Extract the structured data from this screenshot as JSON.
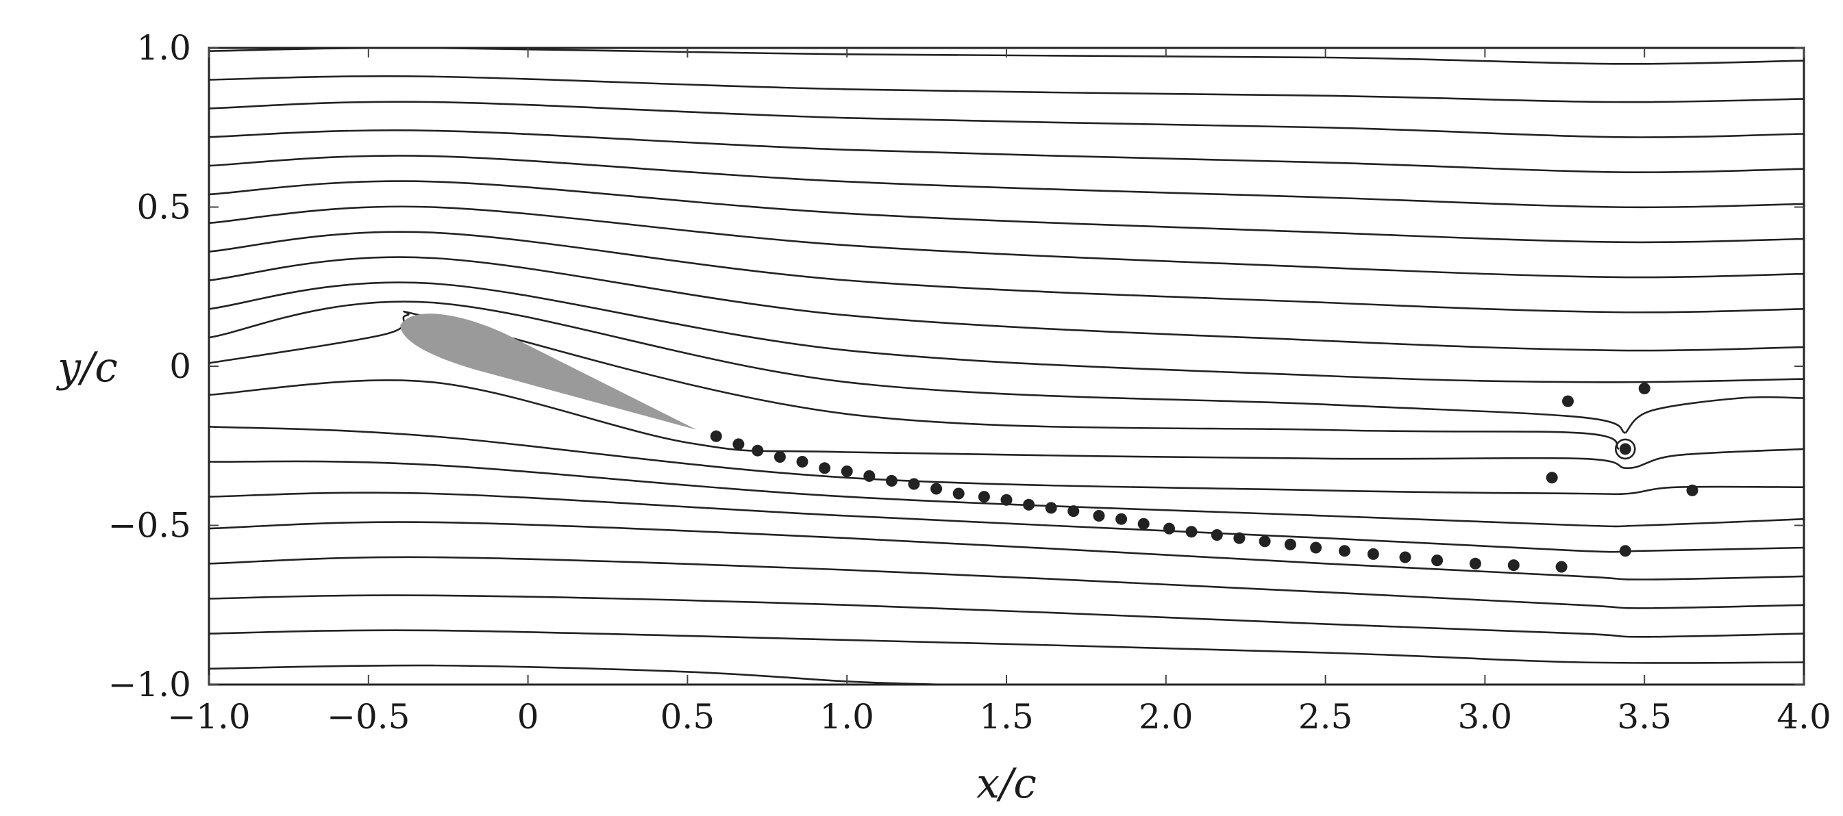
{
  "chart_data": {
    "type": "scatter",
    "xlabel": "x/c",
    "ylabel": "y/c",
    "xlim": [
      -1.0,
      4.0
    ],
    "ylim": [
      -1.0,
      1.0
    ],
    "grid": false,
    "x_ticks": [
      -1.0,
      -0.5,
      0,
      0.5,
      1.0,
      1.5,
      2.0,
      2.5,
      3.0,
      3.5,
      4.0
    ],
    "x_tick_labels": [
      "−1.0",
      "−0.5",
      "0",
      "0.5",
      "1.0",
      "1.5",
      "2.0",
      "2.5",
      "3.0",
      "3.5",
      "4.0"
    ],
    "y_ticks": [
      1.0,
      0.5,
      0,
      -0.5,
      -1.0
    ],
    "y_tick_labels": [
      "1.0",
      "0.5",
      "0",
      "−0.5",
      "−1.0"
    ],
    "colors": {
      "streamline": "#222222",
      "vortex_point": "#222222",
      "airfoil": "#9a9a9a",
      "frame": "#222222"
    },
    "airfoil": {
      "leading_edge": [
        -0.4,
        0.13
      ],
      "trailing_edge": [
        0.53,
        -0.2
      ]
    },
    "vortex_points": [
      {
        "x": 0.59,
        "y": -0.22
      },
      {
        "x": 0.66,
        "y": -0.245
      },
      {
        "x": 0.72,
        "y": -0.265
      },
      {
        "x": 0.79,
        "y": -0.285
      },
      {
        "x": 0.86,
        "y": -0.3
      },
      {
        "x": 0.93,
        "y": -0.32
      },
      {
        "x": 1.0,
        "y": -0.33
      },
      {
        "x": 1.07,
        "y": -0.345
      },
      {
        "x": 1.14,
        "y": -0.36
      },
      {
        "x": 1.21,
        "y": -0.37
      },
      {
        "x": 1.28,
        "y": -0.385
      },
      {
        "x": 1.35,
        "y": -0.4
      },
      {
        "x": 1.43,
        "y": -0.41
      },
      {
        "x": 1.5,
        "y": -0.42
      },
      {
        "x": 1.57,
        "y": -0.435
      },
      {
        "x": 1.64,
        "y": -0.445
      },
      {
        "x": 1.71,
        "y": -0.455
      },
      {
        "x": 1.79,
        "y": -0.47
      },
      {
        "x": 1.86,
        "y": -0.48
      },
      {
        "x": 1.93,
        "y": -0.495
      },
      {
        "x": 2.01,
        "y": -0.51
      },
      {
        "x": 2.08,
        "y": -0.52
      },
      {
        "x": 2.16,
        "y": -0.53
      },
      {
        "x": 2.23,
        "y": -0.54
      },
      {
        "x": 2.31,
        "y": -0.55
      },
      {
        "x": 2.39,
        "y": -0.56
      },
      {
        "x": 2.47,
        "y": -0.57
      },
      {
        "x": 2.56,
        "y": -0.58
      },
      {
        "x": 2.65,
        "y": -0.59
      },
      {
        "x": 2.75,
        "y": -0.6
      },
      {
        "x": 2.85,
        "y": -0.61
      },
      {
        "x": 2.97,
        "y": -0.62
      },
      {
        "x": 3.09,
        "y": -0.625
      },
      {
        "x": 3.24,
        "y": -0.63
      },
      {
        "x": 3.26,
        "y": -0.11
      },
      {
        "x": 3.21,
        "y": -0.35
      },
      {
        "x": 3.44,
        "y": -0.58
      },
      {
        "x": 3.5,
        "y": -0.07
      },
      {
        "x": 3.65,
        "y": -0.39
      },
      {
        "x": 3.44,
        "y": -0.26
      }
    ],
    "streamlines": [
      [
        [
          -1.0,
          0.99
        ],
        [
          -0.3,
          1.0
        ],
        [
          1.0,
          0.98
        ],
        [
          2.5,
          0.97
        ],
        [
          3.4,
          0.95
        ],
        [
          4.0,
          0.96
        ]
      ],
      [
        [
          -1.0,
          0.9
        ],
        [
          -0.3,
          0.91
        ],
        [
          1.0,
          0.87
        ],
        [
          2.5,
          0.85
        ],
        [
          3.4,
          0.83
        ],
        [
          4.0,
          0.84
        ]
      ],
      [
        [
          -1.0,
          0.81
        ],
        [
          -0.3,
          0.83
        ],
        [
          1.0,
          0.78
        ],
        [
          2.5,
          0.75
        ],
        [
          3.4,
          0.72
        ],
        [
          4.0,
          0.73
        ]
      ],
      [
        [
          -1.0,
          0.72
        ],
        [
          -0.3,
          0.74
        ],
        [
          1.0,
          0.68
        ],
        [
          2.5,
          0.64
        ],
        [
          3.4,
          0.61
        ],
        [
          4.0,
          0.62
        ]
      ],
      [
        [
          -1.0,
          0.63
        ],
        [
          -0.3,
          0.66
        ],
        [
          1.0,
          0.58
        ],
        [
          2.5,
          0.53
        ],
        [
          3.4,
          0.5
        ],
        [
          4.0,
          0.51
        ]
      ],
      [
        [
          -1.0,
          0.54
        ],
        [
          -0.3,
          0.58
        ],
        [
          1.0,
          0.48
        ],
        [
          2.5,
          0.42
        ],
        [
          3.4,
          0.39
        ],
        [
          4.0,
          0.4
        ]
      ],
      [
        [
          -1.0,
          0.45
        ],
        [
          -0.3,
          0.5
        ],
        [
          1.0,
          0.38
        ],
        [
          2.5,
          0.31
        ],
        [
          3.4,
          0.28
        ],
        [
          4.0,
          0.29
        ]
      ],
      [
        [
          -1.0,
          0.36
        ],
        [
          -0.3,
          0.42
        ],
        [
          1.0,
          0.27
        ],
        [
          2.5,
          0.2
        ],
        [
          3.4,
          0.17
        ],
        [
          4.0,
          0.18
        ]
      ],
      [
        [
          -1.0,
          0.27
        ],
        [
          -0.3,
          0.34
        ],
        [
          1.0,
          0.16
        ],
        [
          2.5,
          0.08
        ],
        [
          3.4,
          0.05
        ],
        [
          4.0,
          0.06
        ]
      ],
      [
        [
          -1.0,
          0.18
        ],
        [
          -0.3,
          0.26
        ],
        [
          1.0,
          0.05
        ],
        [
          2.5,
          -0.03
        ],
        [
          3.35,
          -0.05
        ],
        [
          4.0,
          -0.04
        ]
      ],
      [
        [
          -1.0,
          0.09
        ],
        [
          -0.3,
          0.2
        ],
        [
          1.0,
          -0.05
        ],
        [
          2.5,
          -0.12
        ],
        [
          3.3,
          -0.16
        ],
        [
          3.44,
          -0.21
        ]
      ],
      [
        [
          -1.0,
          0.01
        ],
        [
          -0.45,
          0.1
        ],
        [
          -0.38,
          0.16
        ],
        [
          -0.25,
          0.14
        ],
        [
          1.0,
          -0.15
        ],
        [
          2.5,
          -0.2
        ],
        [
          3.3,
          -0.21
        ],
        [
          3.42,
          -0.26
        ]
      ],
      [
        [
          3.44,
          -0.21
        ],
        [
          3.52,
          -0.14
        ],
        [
          3.8,
          -0.1
        ],
        [
          4.0,
          -0.1
        ]
      ],
      [
        [
          -1.0,
          -0.09
        ],
        [
          -0.3,
          -0.05
        ],
        [
          0.5,
          -0.24
        ],
        [
          1.0,
          -0.27
        ],
        [
          2.5,
          -0.29
        ],
        [
          3.3,
          -0.29
        ],
        [
          3.45,
          -0.32
        ],
        [
          3.6,
          -0.28
        ],
        [
          4.0,
          -0.26
        ]
      ],
      [
        [
          -1.0,
          -0.19
        ],
        [
          -0.3,
          -0.22
        ],
        [
          1.0,
          -0.35
        ],
        [
          2.5,
          -0.39
        ],
        [
          3.3,
          -0.4
        ],
        [
          3.45,
          -0.4
        ],
        [
          3.6,
          -0.38
        ],
        [
          4.0,
          -0.38
        ]
      ],
      [
        [
          -1.0,
          -0.3
        ],
        [
          -0.3,
          -0.31
        ],
        [
          1.0,
          -0.41
        ],
        [
          2.5,
          -0.47
        ],
        [
          3.3,
          -0.5
        ],
        [
          3.5,
          -0.5
        ],
        [
          4.0,
          -0.48
        ]
      ],
      [
        [
          -1.0,
          -0.41
        ],
        [
          -0.3,
          -0.4
        ],
        [
          1.0,
          -0.47
        ],
        [
          2.5,
          -0.54
        ],
        [
          3.3,
          -0.58
        ],
        [
          3.5,
          -0.58
        ],
        [
          4.0,
          -0.57
        ]
      ],
      [
        [
          -1.0,
          -0.51
        ],
        [
          -0.3,
          -0.49
        ],
        [
          1.0,
          -0.54
        ],
        [
          2.5,
          -0.62
        ],
        [
          3.3,
          -0.66
        ],
        [
          3.5,
          -0.67
        ],
        [
          4.0,
          -0.66
        ]
      ],
      [
        [
          -1.0,
          -0.62
        ],
        [
          -0.3,
          -0.6
        ],
        [
          1.0,
          -0.64
        ],
        [
          2.5,
          -0.71
        ],
        [
          3.3,
          -0.75
        ],
        [
          3.5,
          -0.76
        ],
        [
          4.0,
          -0.75
        ]
      ],
      [
        [
          -1.0,
          -0.73
        ],
        [
          -0.3,
          -0.72
        ],
        [
          1.0,
          -0.75
        ],
        [
          2.5,
          -0.81
        ],
        [
          3.3,
          -0.84
        ],
        [
          3.5,
          -0.85
        ],
        [
          4.0,
          -0.84
        ]
      ],
      [
        [
          -1.0,
          -0.84
        ],
        [
          -0.3,
          -0.83
        ],
        [
          1.0,
          -0.86
        ],
        [
          2.5,
          -0.9
        ],
        [
          3.3,
          -0.93
        ],
        [
          4.0,
          -0.93
        ]
      ],
      [
        [
          -1.0,
          -0.95
        ],
        [
          -0.3,
          -0.94
        ],
        [
          0.5,
          -0.96
        ],
        [
          1.0,
          -0.99
        ],
        [
          1.3,
          -1.0
        ]
      ]
    ]
  }
}
